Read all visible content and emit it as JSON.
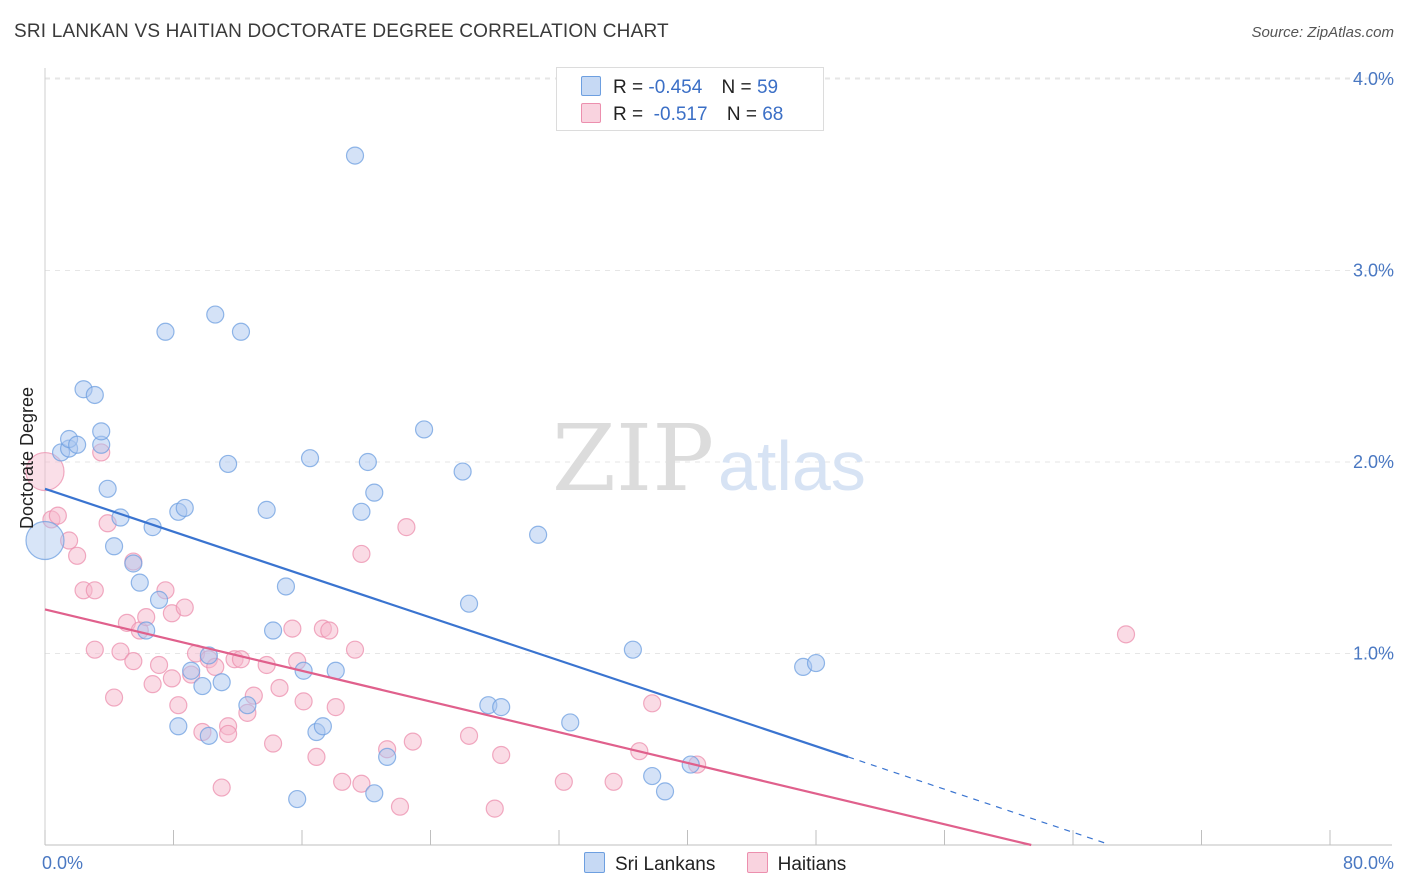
{
  "header": {
    "title": "SRI LANKAN VS HAITIAN DOCTORATE DEGREE CORRELATION CHART",
    "source": "Source: ZipAtlas.com"
  },
  "watermark": {
    "zip": "ZIP",
    "atlas": "atlas"
  },
  "legend": {
    "rows": [
      {
        "r_label": "R =",
        "r_value": "-0.454",
        "n_label": "N =",
        "n_value": "59",
        "color": "#a9c6ef"
      },
      {
        "r_label": "R =",
        "r_value": " -0.517",
        "n_label": "N =",
        "n_value": "68",
        "color": "#f5b8cb"
      }
    ]
  },
  "bottom_legend": [
    {
      "label": "Sri Lankans",
      "color": "#a9c6ef"
    },
    {
      "label": "Haitians",
      "color": "#f5b8cb"
    }
  ],
  "chart_data": {
    "type": "scatter",
    "title": "SRI LANKAN VS HAITIAN DOCTORATE DEGREE CORRELATION CHART",
    "xlabel": "",
    "ylabel": "Doctorate Degree",
    "xlim": [
      0,
      80
    ],
    "ylim": [
      0,
      4.2
    ],
    "x_tick_labels": [
      "0.0%",
      "80.0%"
    ],
    "y_ticks": [
      1,
      2,
      3,
      4
    ],
    "y_tick_labels": [
      "1.0%",
      "2.0%",
      "3.0%",
      "4.0%"
    ],
    "grid": true,
    "series": [
      {
        "name": "Sri Lankans",
        "color": "#6d9fe0",
        "fill": "#a9c6ef",
        "trend": {
          "x": [
            0,
            50
          ],
          "y": [
            1.86,
            0.46
          ],
          "dashed_to": [
            66,
            0.01
          ],
          "color": "#3a74d0"
        },
        "points": [
          [
            0,
            1.59
          ],
          [
            1,
            2.05
          ],
          [
            1.5,
            2.07
          ],
          [
            1.5,
            2.12
          ],
          [
            2,
            2.09
          ],
          [
            2.4,
            2.38
          ],
          [
            3.1,
            2.35
          ],
          [
            3.5,
            2.09
          ],
          [
            3.5,
            2.16
          ],
          [
            3.9,
            1.86
          ],
          [
            4.3,
            1.56
          ],
          [
            4.7,
            1.71
          ],
          [
            5.5,
            1.47
          ],
          [
            5.9,
            1.37
          ],
          [
            6.3,
            1.12
          ],
          [
            6.7,
            1.66
          ],
          [
            7.1,
            1.28
          ],
          [
            7.5,
            2.68
          ],
          [
            8.3,
            0.62
          ],
          [
            8.3,
            1.74
          ],
          [
            8.7,
            1.76
          ],
          [
            9.1,
            0.91
          ],
          [
            9.8,
            0.83
          ],
          [
            10.2,
            0.99
          ],
          [
            10.2,
            0.57
          ],
          [
            10.6,
            2.77
          ],
          [
            11.0,
            0.85
          ],
          [
            11.4,
            1.99
          ],
          [
            12.2,
            2.68
          ],
          [
            12.6,
            0.73
          ],
          [
            13.8,
            1.75
          ],
          [
            14.2,
            1.12
          ],
          [
            15.0,
            1.35
          ],
          [
            15.7,
            0.24
          ],
          [
            16.1,
            0.91
          ],
          [
            16.5,
            2.02
          ],
          [
            16.9,
            0.59
          ],
          [
            17.3,
            0.62
          ],
          [
            18.1,
            0.91
          ],
          [
            19.3,
            3.6
          ],
          [
            19.7,
            1.74
          ],
          [
            20.1,
            2.0
          ],
          [
            20.5,
            1.84
          ],
          [
            20.5,
            0.27
          ],
          [
            21.3,
            0.46
          ],
          [
            23.6,
            2.17
          ],
          [
            26.0,
            1.95
          ],
          [
            26.4,
            1.26
          ],
          [
            27.6,
            0.73
          ],
          [
            28.4,
            0.72
          ],
          [
            30.7,
            1.62
          ],
          [
            32.7,
            0.64
          ],
          [
            36.6,
            1.02
          ],
          [
            37.8,
            0.36
          ],
          [
            38.6,
            0.28
          ],
          [
            40.2,
            0.42
          ],
          [
            47.2,
            0.93
          ],
          [
            48.0,
            0.95
          ]
        ]
      },
      {
        "name": "Haitians",
        "color": "#ec8fae",
        "fill": "#f5b8cb",
        "trend": {
          "x": [
            0,
            61.4
          ],
          "y": [
            1.23,
            0.0
          ],
          "color": "#e0608c"
        },
        "points": [
          [
            0,
            1.95
          ],
          [
            0.4,
            1.7
          ],
          [
            0.8,
            1.72
          ],
          [
            1.5,
            1.59
          ],
          [
            2.0,
            1.51
          ],
          [
            2.4,
            1.33
          ],
          [
            3.1,
            1.02
          ],
          [
            3.1,
            1.33
          ],
          [
            3.5,
            2.05
          ],
          [
            3.9,
            1.68
          ],
          [
            4.3,
            0.77
          ],
          [
            4.7,
            1.01
          ],
          [
            5.1,
            1.16
          ],
          [
            5.5,
            1.48
          ],
          [
            5.5,
            0.96
          ],
          [
            5.9,
            1.12
          ],
          [
            6.3,
            1.19
          ],
          [
            6.7,
            0.84
          ],
          [
            7.1,
            0.94
          ],
          [
            7.5,
            1.33
          ],
          [
            7.9,
            0.87
          ],
          [
            7.9,
            1.21
          ],
          [
            8.3,
            0.73
          ],
          [
            8.7,
            1.24
          ],
          [
            9.1,
            0.89
          ],
          [
            9.4,
            1.0
          ],
          [
            9.8,
            0.59
          ],
          [
            10.2,
            0.97
          ],
          [
            10.6,
            0.93
          ],
          [
            11.0,
            0.3
          ],
          [
            11.4,
            0.62
          ],
          [
            11.4,
            0.58
          ],
          [
            11.8,
            0.97
          ],
          [
            12.2,
            0.97
          ],
          [
            12.6,
            0.69
          ],
          [
            13.0,
            0.78
          ],
          [
            13.8,
            0.94
          ],
          [
            14.2,
            0.53
          ],
          [
            14.6,
            0.82
          ],
          [
            15.4,
            1.13
          ],
          [
            15.7,
            0.96
          ],
          [
            16.1,
            0.75
          ],
          [
            16.9,
            0.46
          ],
          [
            17.3,
            1.13
          ],
          [
            17.7,
            1.12
          ],
          [
            18.1,
            0.72
          ],
          [
            18.5,
            0.33
          ],
          [
            19.3,
            1.02
          ],
          [
            19.7,
            1.52
          ],
          [
            19.7,
            0.32
          ],
          [
            21.3,
            0.5
          ],
          [
            22.1,
            0.2
          ],
          [
            22.5,
            1.66
          ],
          [
            22.9,
            0.54
          ],
          [
            26.4,
            0.57
          ],
          [
            28.0,
            0.19
          ],
          [
            28.4,
            0.47
          ],
          [
            32.3,
            0.33
          ],
          [
            35.4,
            0.33
          ],
          [
            37.0,
            0.49
          ],
          [
            37.8,
            0.74
          ],
          [
            40.6,
            0.42
          ],
          [
            67.3,
            1.1
          ]
        ]
      }
    ]
  }
}
